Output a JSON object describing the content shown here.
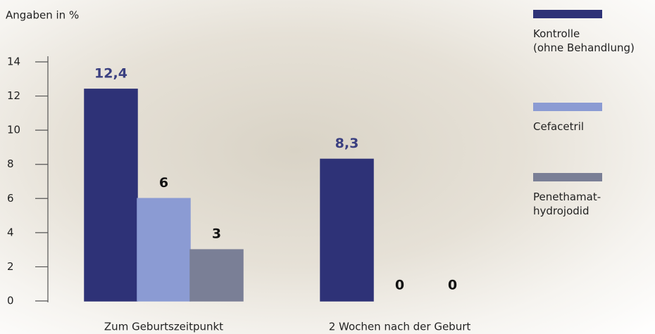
{
  "chart_data": {
    "type": "bar",
    "y_label": "Angaben in %",
    "categories": [
      "Zum Geburtszeitpunkt",
      "2 Wochen nach der Geburt"
    ],
    "series": [
      {
        "name": "Kontrolle\n(ohne Behandlung)",
        "color": "#2e3277",
        "label_color": "#3a3f80",
        "values": [
          12.4,
          8.3
        ],
        "value_labels": [
          "12,4",
          "8,3"
        ]
      },
      {
        "name": "Cefacetril",
        "color": "#8b9bd3",
        "label_color": "#111111",
        "values": [
          6,
          0
        ],
        "value_labels": [
          "6",
          "0"
        ]
      },
      {
        "name": "Penethamat-\nhydrojodid",
        "color": "#7a7f96",
        "label_color": "#111111",
        "values": [
          3,
          0
        ],
        "value_labels": [
          "3",
          "0"
        ]
      }
    ],
    "ylim": [
      0,
      14
    ],
    "yticks": [
      0,
      2,
      4,
      6,
      8,
      10,
      12,
      14
    ]
  }
}
